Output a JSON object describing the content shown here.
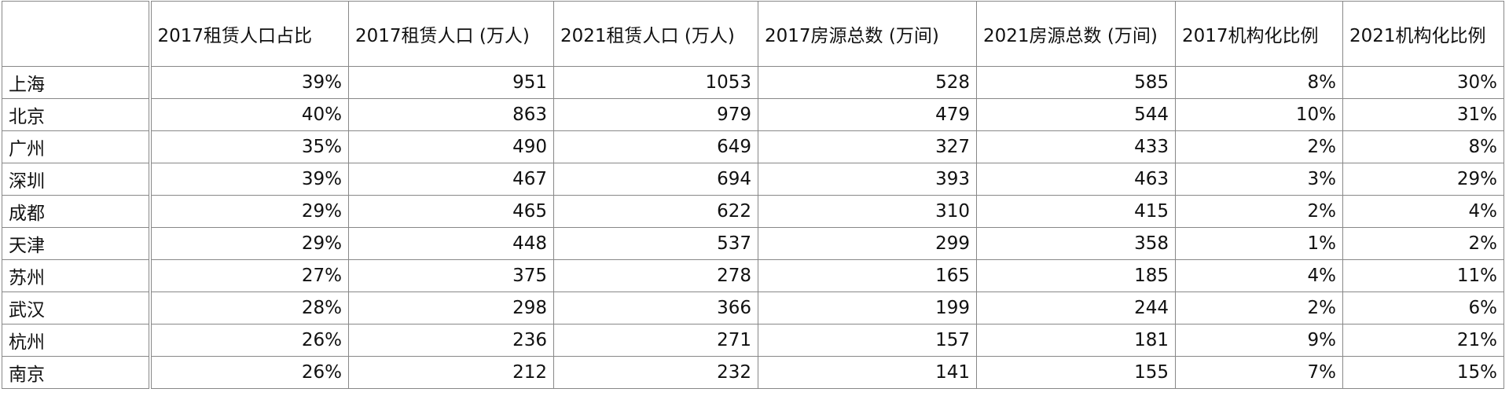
{
  "table": {
    "header": [
      "",
      "2017租赁人口占比",
      "2017租赁人口 (万人)",
      "2021租赁人口 (万人)",
      "2017房源总数 (万间)",
      "2021房源总数 (万间)",
      "2017机构化比例",
      "2021机构化比例"
    ],
    "rows": [
      [
        "上海",
        "39%",
        "951",
        "1053",
        "528",
        "585",
        "8%",
        "30%"
      ],
      [
        "北京",
        "40%",
        "863",
        "979",
        "479",
        "544",
        "10%",
        "31%"
      ],
      [
        "广州",
        "35%",
        "490",
        "649",
        "327",
        "433",
        "2%",
        "8%"
      ],
      [
        "深圳",
        "39%",
        "467",
        "694",
        "393",
        "463",
        "3%",
        "29%"
      ],
      [
        "成都",
        "29%",
        "465",
        "622",
        "310",
        "415",
        "2%",
        "4%"
      ],
      [
        "天津",
        "29%",
        "448",
        "537",
        "299",
        "358",
        "1%",
        "2%"
      ],
      [
        "苏州",
        "27%",
        "375",
        "278",
        "165",
        "185",
        "4%",
        "11%"
      ],
      [
        "武汉",
        "28%",
        "298",
        "366",
        "199",
        "244",
        "2%",
        "6%"
      ],
      [
        "杭州",
        "26%",
        "236",
        "271",
        "157",
        "181",
        "9%",
        "21%"
      ],
      [
        "南京",
        "26%",
        "212",
        "232",
        "141",
        "155",
        "7%",
        "15%"
      ]
    ]
  }
}
